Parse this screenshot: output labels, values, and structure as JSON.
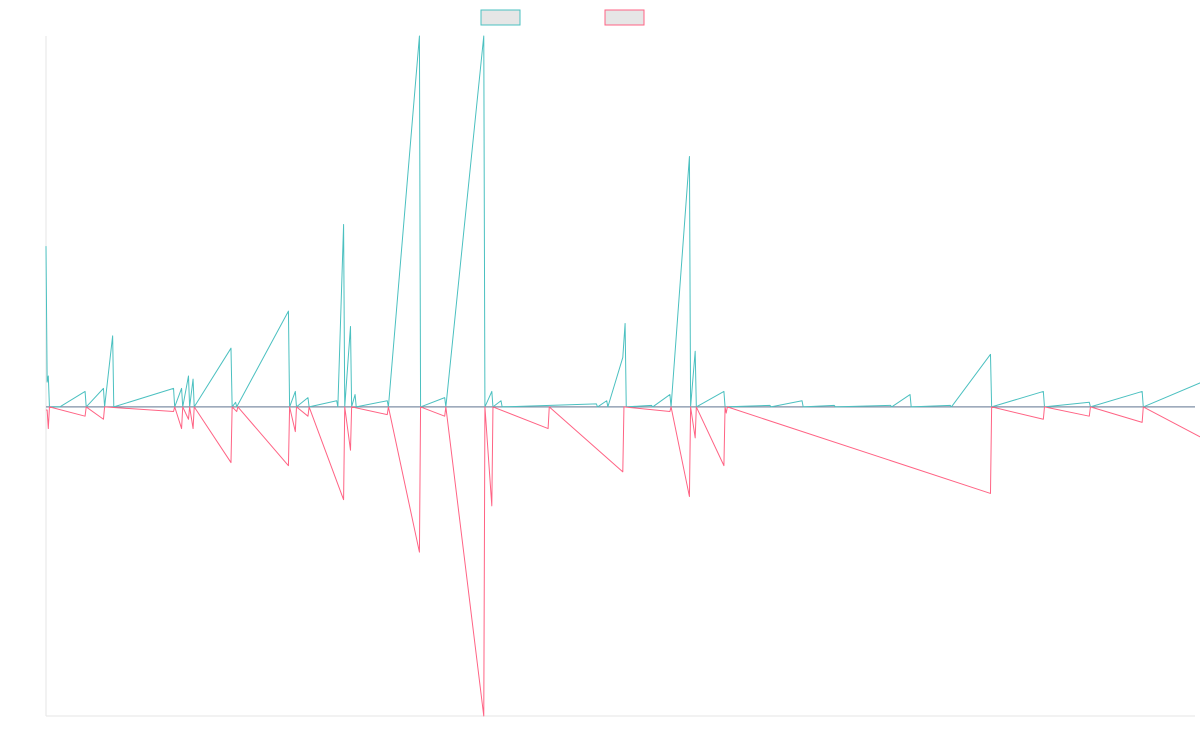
{
  "chart_data": {
    "type": "line",
    "title": "",
    "xlabel": "",
    "ylabel": "",
    "grid": false,
    "legend_position": "top-center",
    "xlim": [
      0,
      1000
    ],
    "ylim": [
      -100,
      120
    ],
    "series": [
      {
        "name": "",
        "color": "#4bc0c0",
        "fill": "#e6e6e6",
        "points": [
          [
            0,
            52
          ],
          [
            1,
            8
          ],
          [
            2,
            10
          ],
          [
            3,
            0
          ],
          [
            12,
            0
          ],
          [
            34,
            5
          ],
          [
            35,
            0
          ],
          [
            50,
            6
          ],
          [
            51,
            0
          ],
          [
            58,
            23
          ],
          [
            59,
            0
          ],
          [
            111,
            6
          ],
          [
            112,
            0
          ],
          [
            118,
            6
          ],
          [
            119,
            0
          ],
          [
            124,
            10
          ],
          [
            125,
            0
          ],
          [
            128,
            9
          ],
          [
            129,
            0
          ],
          [
            161,
            19
          ],
          [
            162,
            0
          ],
          [
            165,
            1.5
          ],
          [
            166,
            0
          ],
          [
            211,
            31
          ],
          [
            212,
            0
          ],
          [
            217,
            5
          ],
          [
            218,
            0
          ],
          [
            228,
            3
          ],
          [
            229,
            0
          ],
          [
            253,
            2
          ],
          [
            254,
            0
          ],
          [
            259,
            59
          ],
          [
            260,
            0
          ],
          [
            265,
            26
          ],
          [
            266,
            0
          ],
          [
            269,
            4
          ],
          [
            270,
            0
          ],
          [
            297,
            2
          ],
          [
            298,
            0
          ],
          [
            325,
            120
          ],
          [
            326,
            0
          ],
          [
            347,
            3
          ],
          [
            348,
            0
          ],
          [
            381,
            120
          ],
          [
            382,
            0
          ],
          [
            388,
            5
          ],
          [
            389,
            0
          ],
          [
            396,
            2
          ],
          [
            397,
            0
          ],
          [
            479,
            1
          ],
          [
            480,
            0
          ],
          [
            488,
            2
          ],
          [
            489,
            0
          ],
          [
            502,
            16
          ],
          [
            504,
            27
          ],
          [
            505,
            0
          ],
          [
            527,
            0.5
          ],
          [
            528,
            0
          ],
          [
            543,
            4
          ],
          [
            544,
            0
          ],
          [
            560,
            81
          ],
          [
            561,
            0
          ],
          [
            565,
            18
          ],
          [
            566,
            0
          ],
          [
            590,
            5
          ],
          [
            591,
            0
          ],
          [
            630,
            0.5
          ],
          [
            631,
            0
          ],
          [
            658,
            2
          ],
          [
            659,
            0
          ],
          [
            686,
            0.5
          ],
          [
            687,
            0
          ],
          [
            735,
            0.5
          ],
          [
            736,
            0
          ],
          [
            752,
            4
          ],
          [
            753,
            0
          ],
          [
            787,
            0.5
          ],
          [
            788,
            0
          ],
          [
            822,
            17
          ],
          [
            823,
            0
          ],
          [
            868,
            5
          ],
          [
            869,
            0
          ],
          [
            908,
            1.5
          ],
          [
            909,
            0
          ],
          [
            954,
            5
          ],
          [
            955,
            0
          ],
          [
            1006,
            8
          ],
          [
            1007,
            0
          ]
        ]
      },
      {
        "name": "",
        "color": "#ff6384",
        "fill": "#e6e6e6",
        "points": [
          [
            0,
            -1
          ],
          [
            1,
            -1
          ],
          [
            2,
            -7
          ],
          [
            3,
            0
          ],
          [
            34,
            -3
          ],
          [
            35,
            0
          ],
          [
            50,
            -4
          ],
          [
            51,
            0
          ],
          [
            111,
            -1.5
          ],
          [
            112,
            0
          ],
          [
            118,
            -7
          ],
          [
            119,
            0
          ],
          [
            124,
            -4
          ],
          [
            125,
            0
          ],
          [
            128,
            -7
          ],
          [
            129,
            0
          ],
          [
            161,
            -18
          ],
          [
            162,
            0
          ],
          [
            166,
            -1.5
          ],
          [
            167,
            0
          ],
          [
            211,
            -19
          ],
          [
            212,
            0
          ],
          [
            217,
            -8
          ],
          [
            218,
            0
          ],
          [
            228,
            -3
          ],
          [
            229,
            0
          ],
          [
            259,
            -30
          ],
          [
            260,
            0
          ],
          [
            265,
            -14
          ],
          [
            266,
            0
          ],
          [
            297,
            -2.5
          ],
          [
            298,
            0
          ],
          [
            325,
            -47
          ],
          [
            326,
            0
          ],
          [
            347,
            -3
          ],
          [
            348,
            0
          ],
          [
            381,
            -100
          ],
          [
            382,
            0
          ],
          [
            388,
            -32
          ],
          [
            389,
            0
          ],
          [
            437,
            -7
          ],
          [
            438,
            0
          ],
          [
            502,
            -21
          ],
          [
            503,
            0
          ],
          [
            543,
            -1.5
          ],
          [
            544,
            0
          ],
          [
            560,
            -29
          ],
          [
            561,
            0
          ],
          [
            565,
            -10
          ],
          [
            566,
            0
          ],
          [
            590,
            -19
          ],
          [
            591,
            0
          ],
          [
            592,
            -2
          ],
          [
            593,
            0
          ],
          [
            822,
            -28
          ],
          [
            823,
            0
          ],
          [
            868,
            -4
          ],
          [
            869,
            0
          ],
          [
            908,
            -3
          ],
          [
            909,
            0
          ],
          [
            954,
            -5
          ],
          [
            955,
            0
          ],
          [
            1006,
            -10
          ],
          [
            1007,
            0
          ]
        ]
      }
    ]
  }
}
